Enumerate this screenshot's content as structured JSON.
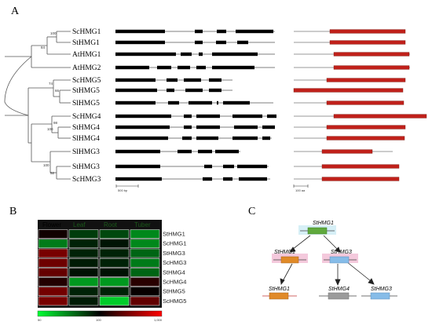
{
  "figure": {
    "panel_labels": [
      "A",
      "B",
      "C"
    ]
  },
  "panel_a": {
    "genes": [
      "ScHMG1",
      "StHMG1",
      "AtHMG1",
      "AtHMG2",
      "ScHMG5",
      "StHMG5",
      "SlHMG5",
      "ScHMG4",
      "StHMG4",
      "SlHMG4",
      "SlHMG3",
      "StHMG3",
      "ScHMG3"
    ],
    "bootstrap": [
      "100",
      "84",
      "74",
      "66",
      "98",
      "100",
      "100",
      "52"
    ],
    "scale_gene": "500 bp",
    "scale_protein": "100 aa",
    "colors": {
      "exon": "#000000",
      "intron": "#000000",
      "domain": "#c0201a",
      "domain_edge": "#7a1a10"
    }
  },
  "panel_b": {
    "columns": [
      "Flower",
      "Leaf",
      "Root",
      "Tuber"
    ],
    "rows": [
      "StHMG1",
      "ScHMG1",
      "StHMG3",
      "ScHMG3",
      "StHMG4",
      "ScHMG4",
      "StHMG5",
      "ScHMG5"
    ],
    "row_label_colors": [
      "#228b22",
      "#222222",
      "#228b22",
      "#222222",
      "#228b22",
      "#222222",
      "#c02020",
      "#c02020"
    ],
    "values": [
      [
        40,
        14,
        12,
        5
      ],
      [
        6,
        20,
        24,
        5
      ],
      [
        160,
        20,
        20,
        8
      ],
      [
        140,
        22,
        20,
        6
      ],
      [
        125,
        25,
        25,
        8
      ],
      [
        50,
        4,
        4,
        55
      ],
      [
        150,
        20,
        20,
        35
      ],
      [
        160,
        22,
        2,
        120
      ]
    ],
    "scale": {
      "min": 0,
      "mid": 100,
      "max": 1000,
      "tick_labels": [
        "50",
        "100",
        "1,000"
      ]
    },
    "colors": {
      "low": "#00ff33",
      "mid": "#000000",
      "high": "#ff0000",
      "cell_border": "#ffffff"
    }
  },
  "panel_c": {
    "nodes": [
      "StHMG1",
      "StHMG1",
      "StHMG3",
      "StHMG1",
      "StHMG4",
      "StHMG3"
    ],
    "colors": {
      "green": "#5fa93d",
      "orange": "#e08a28",
      "blue": "#86bce8",
      "gray": "#9b9b9b"
    }
  }
}
